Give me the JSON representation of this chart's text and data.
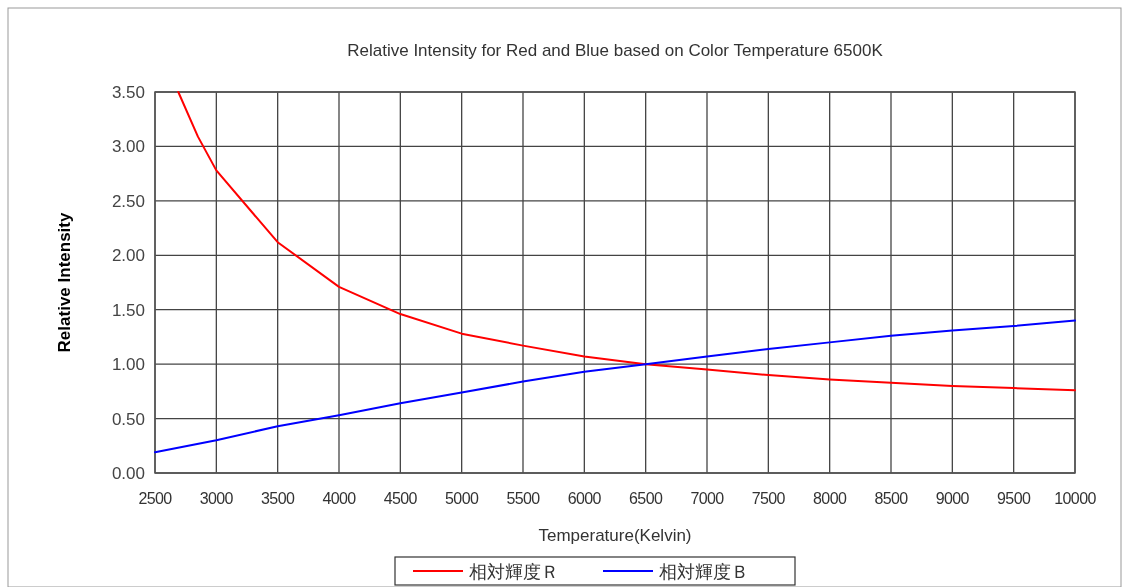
{
  "chart_data": {
    "type": "line",
    "title": "Relative Intensity for Red and Blue based on Color Temperature 6500K",
    "xlabel": "Temperature(Kelvin)",
    "ylabel": "Relative Intensity",
    "series": [
      {
        "name": "相対輝度Ｒ",
        "color": "#ff0000",
        "x": [
          2690,
          2850,
          3000,
          3500,
          4000,
          4500,
          5000,
          5500,
          6000,
          6500,
          7000,
          7500,
          8000,
          8500,
          9000,
          9500,
          10000
        ],
        "values": [
          3.5,
          3.09,
          2.78,
          2.12,
          1.71,
          1.46,
          1.28,
          1.17,
          1.07,
          1.0,
          0.95,
          0.9,
          0.86,
          0.83,
          0.8,
          0.78,
          0.76
        ]
      },
      {
        "name": "相対輝度Ｂ",
        "color": "#0000ff",
        "x": [
          2500,
          3000,
          3500,
          4000,
          4500,
          5000,
          5500,
          6000,
          6500,
          7000,
          7500,
          8000,
          8500,
          9000,
          9500,
          10000
        ],
        "values": [
          0.19,
          0.3,
          0.43,
          0.53,
          0.64,
          0.74,
          0.84,
          0.93,
          1.0,
          1.07,
          1.14,
          1.2,
          1.26,
          1.31,
          1.35,
          1.4
        ]
      }
    ],
    "xlim": [
      2500,
      10000
    ],
    "xticks": [
      2500,
      3000,
      3500,
      4000,
      4500,
      5000,
      5500,
      6000,
      6500,
      7000,
      7500,
      8000,
      8500,
      9000,
      9500,
      10000
    ],
    "ylim": [
      0,
      3.5
    ],
    "yticks": [
      {
        "value": 0,
        "label": "0.00"
      },
      {
        "value": 0.5,
        "label": "0.50"
      },
      {
        "value": 1,
        "label": "1.00"
      },
      {
        "value": 1.5,
        "label": "1.50"
      },
      {
        "value": 2,
        "label": "2.00"
      },
      {
        "value": 2.5,
        "label": "2.50"
      },
      {
        "value": 3,
        "label": "3.00"
      },
      {
        "value": 3.5,
        "label": "3.50"
      }
    ],
    "grid": true,
    "legend": "bottom",
    "marker": "none",
    "line_style": "solid"
  }
}
